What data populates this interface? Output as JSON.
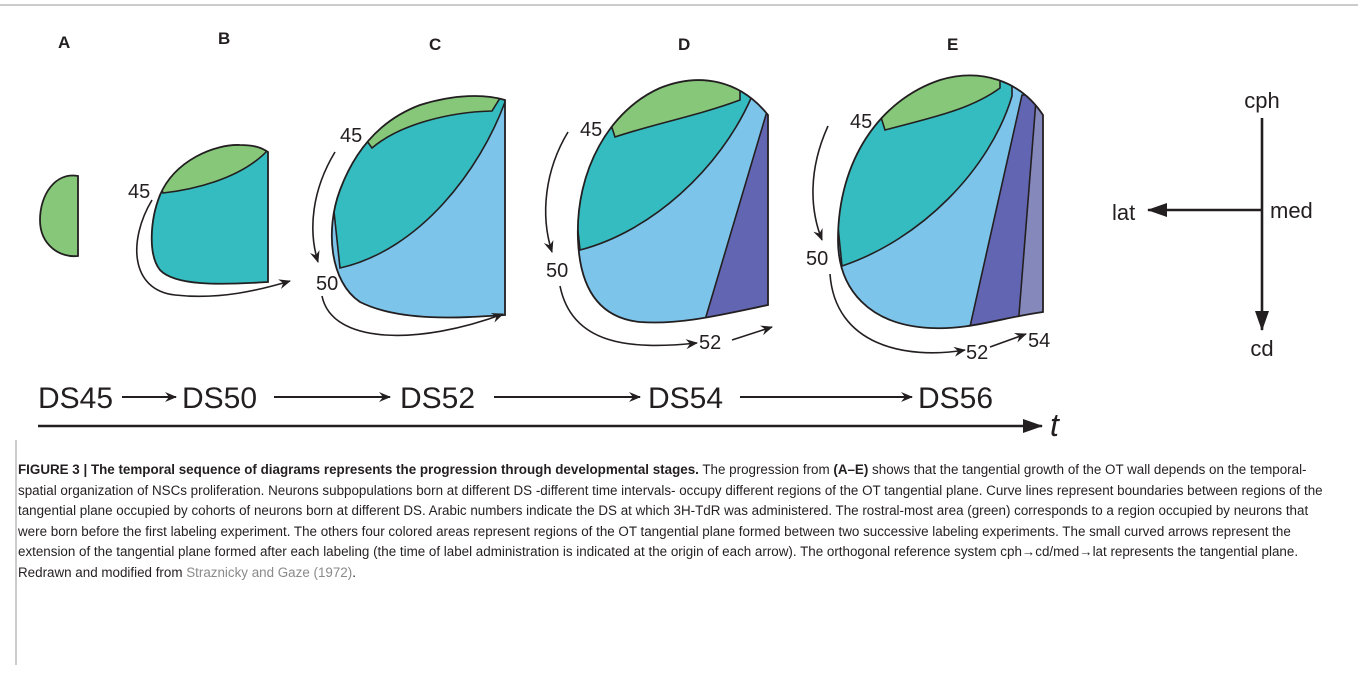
{
  "figure": {
    "panels": [
      "A",
      "B",
      "C",
      "D",
      "E"
    ],
    "stage_numbers": {
      "b45": "45",
      "c45": "45",
      "c50": "50",
      "d45": "45",
      "d50": "50",
      "d52": "52",
      "e45": "45",
      "e50": "50",
      "e52": "52",
      "e54": "54"
    },
    "stages": [
      "DS45",
      "DS50",
      "DS52",
      "DS54",
      "DS56"
    ],
    "time_label": "t",
    "axes": {
      "top": "cph",
      "middle": "med",
      "left": "lat",
      "bottom": "cd"
    }
  },
  "caption": {
    "title": "FIGURE 3 | The temporal sequence of diagrams represents the progression through developmental stages.",
    "text1": " The progression from ",
    "range": "(A–E)",
    "text2": " shows that the tangential growth of the OT wall depends on the temporal-spatial organization of NSCs proliferation. Neurons subpopulations born at different DS -different time intervals- occupy different regions of the OT tangential plane. Curve lines represent boundaries between regions of the tangential plane occupied by cohorts of neurons born at different DS. Arabic numbers indicate the DS at which 3H-TdR was administered. The rostral-most area (green) corresponds to a region occupied by neurons that were born before the first labeling experiment. The others four colored areas represent regions of the OT tangential plane formed between two successive labeling experiments. The small curved arrows represent the extension of the tangential plane formed after each labeling (the time of label administration is indicated at the origin of each arrow). The orthogonal reference system cph→cd/med→lat represents the tangential plane. Redrawn and modified from ",
    "reference": "Straznicky and Gaze (1972)",
    "end": "."
  }
}
